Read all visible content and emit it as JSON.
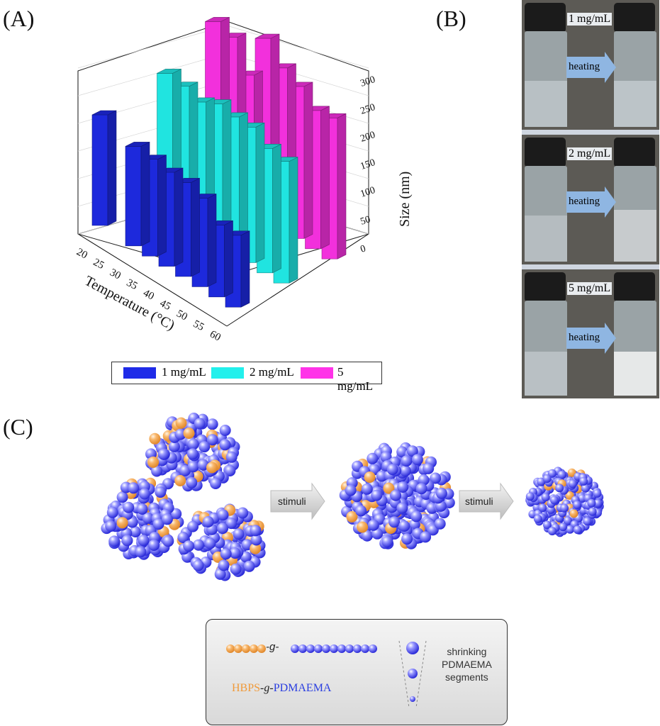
{
  "panels": {
    "a": "(A)",
    "b": "(B)",
    "c": "(C)"
  },
  "chart_data": {
    "type": "bar",
    "subtype": "3d-bar",
    "x_label": "Temperature (°C)",
    "y_label": "Size (nm)",
    "categories": [
      "20",
      "25",
      "30",
      "35",
      "40",
      "45",
      "50",
      "55",
      "60"
    ],
    "x_ticks": [
      "20",
      "25",
      "30",
      "35",
      "40",
      "45",
      "50",
      "55",
      "60"
    ],
    "y_ticks": [
      "0",
      "50",
      "100",
      "150",
      "200",
      "250",
      "300"
    ],
    "ylim": [
      0,
      300
    ],
    "grid": true,
    "legend_position": "bottom",
    "series": [
      {
        "name": "1 mg/mL",
        "color": "#1f2be8",
        "values": [
          200,
          null,
          180,
          175,
          170,
          170,
          160,
          130,
          130
        ]
      },
      {
        "name": "2 mg/mL",
        "color": "#22f0ec",
        "values": [
          null,
          250,
          245,
          235,
          250,
          245,
          245,
          225,
          220
        ]
      },
      {
        "name": "5 mg/mL",
        "color": "#ff33e8",
        "values": [
          null,
          300,
          290,
          240,
          325,
          290,
          275,
          250,
          255
        ]
      }
    ]
  },
  "vials": {
    "rows": [
      {
        "conc": "1 mg/mL",
        "arrow": "heating",
        "after": "clear"
      },
      {
        "conc": "2 mg/mL",
        "arrow": "heating",
        "after": "slightly turbid"
      },
      {
        "conc": "5 mg/mL",
        "arrow": "heating",
        "after": "turbid"
      }
    ]
  },
  "scheme": {
    "arrow1": "stimuli",
    "arrow2": "stimuli",
    "legend": {
      "graft_text": "-g-",
      "label_hbps": "HBPS",
      "label_g": "-g-",
      "label_pdmaema": "PDMAEMA",
      "shrink_line1": "shrinking",
      "shrink_line2": "PDMAEMA",
      "shrink_line3": "segments"
    }
  },
  "colors": {
    "blue_sphere": "#4b4bff",
    "orange_sphere": "#f5a04a",
    "arrow_blue": "#8fb6e2"
  }
}
